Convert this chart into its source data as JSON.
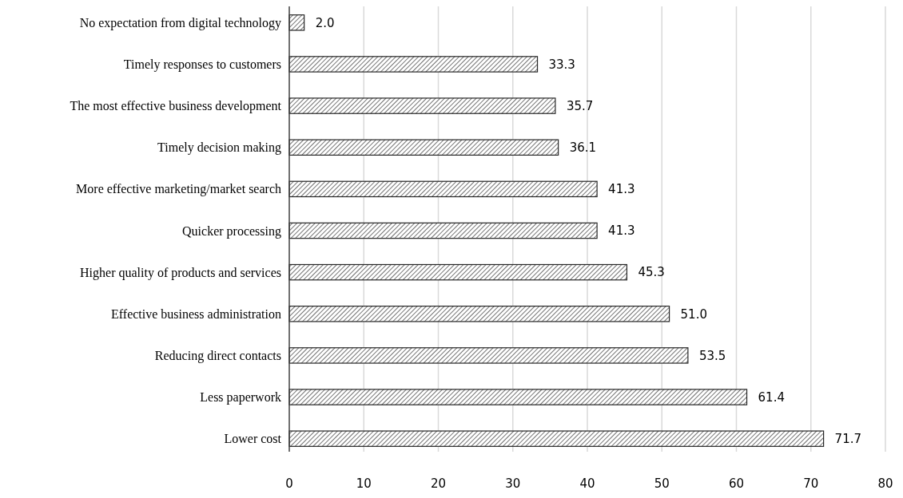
{
  "chart_data": {
    "type": "bar",
    "orientation": "horizontal",
    "categories": [
      "No expectation from digital technology",
      "Timely responses to customers",
      "The most effective business development",
      "Timely decision making",
      "More effective marketing/market search",
      "Quicker processing",
      "Higher quality of products and services",
      "Effective business administration",
      "Reducing direct contacts",
      "Less paperwork",
      "Lower cost"
    ],
    "values": [
      2.0,
      33.3,
      35.7,
      36.1,
      41.3,
      41.3,
      45.3,
      51.0,
      53.5,
      61.4,
      71.7
    ],
    "value_labels": [
      "2.0",
      "33.3",
      "35.7",
      "36.1",
      "41.3",
      "41.3",
      "45.3",
      "51.0",
      "53.5",
      "61.4",
      "71.7"
    ],
    "color": "#262626",
    "xlim": [
      0,
      80
    ],
    "xticks": [
      0,
      10,
      20,
      30,
      40,
      50,
      60,
      70,
      80
    ],
    "grid": "x"
  }
}
